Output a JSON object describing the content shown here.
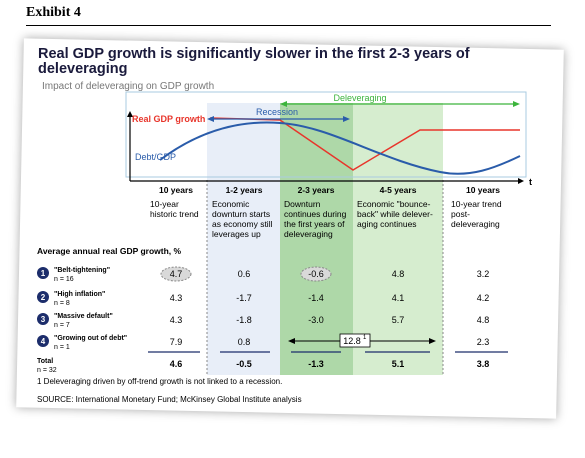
{
  "exhibit": "Exhibit 4",
  "title": "Real GDP growth is significantly slower in the first 2-3 years of deleveraging",
  "subtitle": "Impact of deleveraging on GDP growth",
  "colors": {
    "gdp_line": "#e8352b",
    "debt_line": "#2a5caa",
    "recession_arrow": "#2a5caa",
    "deleveraging_arrow": "#3cb43c",
    "recession_band": "#e8eef8",
    "downturn_band": "#aed8a8",
    "bounce_band": "#d6edcf"
  },
  "chart_data": {
    "type": "table",
    "diagram": {
      "gdp_label": "Real GDP growth",
      "debt_label": "Debt/GDP",
      "recession_label": "Recession",
      "deleveraging_label": "Deleveraging",
      "axis_end_label": "t"
    },
    "periods": [
      {
        "label": "10 years",
        "desc": "10-year historic trend"
      },
      {
        "label": "1-2 years",
        "desc": "Economic downturn starts as economy still leverages up"
      },
      {
        "label": "2-3 years",
        "desc": "Downturn continues during the first years of deleveraging"
      },
      {
        "label": "4-5 years",
        "desc": "Economic \"bounce-back\" while delever-aging continues"
      },
      {
        "label": "10 years",
        "desc": "10-year trend post-deleveraging"
      }
    ],
    "table_title": "Average annual real GDP growth, %",
    "rows": [
      {
        "num": "1",
        "name": "\"Belt-tightening\"",
        "n": "n = 16",
        "values": [
          "4.7",
          "0.6",
          "-0.6",
          "4.8",
          "3.2"
        ]
      },
      {
        "num": "2",
        "name": "\"High inflation\"",
        "n": "n = 8",
        "values": [
          "4.3",
          "-1.7",
          "-1.4",
          "4.1",
          "4.2"
        ]
      },
      {
        "num": "3",
        "name": "\"Massive default\"",
        "n": "n = 7",
        "values": [
          "4.3",
          "-1.8",
          "-3.0",
          "5.7",
          "4.8"
        ]
      },
      {
        "num": "4",
        "name": "\"Growing out of debt\"",
        "n": "n = 1",
        "values": [
          "7.9",
          "0.8",
          "",
          "",
          "2.3"
        ],
        "span_value": "12.8",
        "span_sup": "1"
      }
    ],
    "total": {
      "name": "Total",
      "n": "n = 32",
      "values": [
        "4.6",
        "-0.5",
        "-1.3",
        "5.1",
        "3.8"
      ]
    }
  },
  "footnote": "1 Deleveraging driven by off-trend growth is not linked to a recession.",
  "source": "SOURCE: International Monetary Fund; McKinsey Global Institute analysis"
}
